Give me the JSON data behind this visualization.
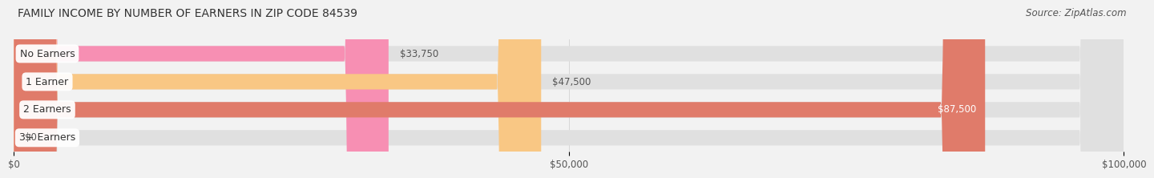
{
  "title": "FAMILY INCOME BY NUMBER OF EARNERS IN ZIP CODE 84539",
  "source": "Source: ZipAtlas.com",
  "categories": [
    "No Earners",
    "1 Earner",
    "2 Earners",
    "3+ Earners"
  ],
  "values": [
    33750,
    47500,
    87500,
    0
  ],
  "bar_colors": [
    "#f78fb3",
    "#f9c784",
    "#e07b6a",
    "#a8c4e0"
  ],
  "value_labels": [
    "$33,750",
    "$47,500",
    "$87,500",
    "$0"
  ],
  "value_label_inside": [
    false,
    false,
    true,
    false
  ],
  "xlim": [
    0,
    100000
  ],
  "xticks": [
    0,
    50000,
    100000
  ],
  "xticklabels": [
    "$0",
    "$50,000",
    "$100,000"
  ],
  "bar_height": 0.55,
  "background_color": "#f2f2f2",
  "bar_bg_color": "#e0e0e0",
  "title_fontsize": 10,
  "source_fontsize": 8.5,
  "tick_fontsize": 8.5,
  "label_fontsize": 9,
  "value_fontsize": 8.5
}
